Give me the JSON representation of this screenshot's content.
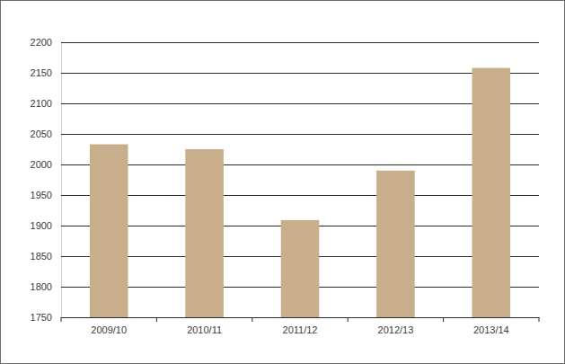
{
  "chart_data": {
    "type": "bar",
    "categories": [
      "2009/10",
      "2010/11",
      "2011/12",
      "2012/13",
      "2013/14"
    ],
    "values": [
      2033,
      2025,
      1909,
      1990,
      2158
    ],
    "color": "#c8ae8a",
    "ylim": [
      1750,
      2200
    ],
    "yticks": [
      1750,
      1800,
      1850,
      1900,
      1950,
      2000,
      2050,
      2100,
      2150,
      2200
    ],
    "grid": true
  }
}
